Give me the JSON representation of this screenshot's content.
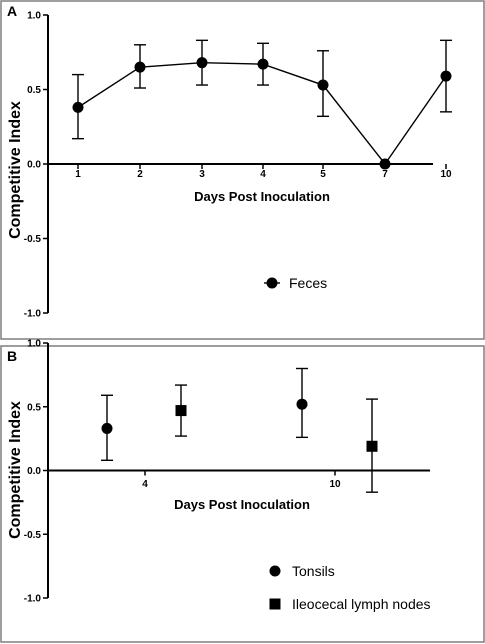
{
  "chart_data": [
    {
      "panel": "A",
      "type": "line",
      "xlabel": "Days Post Inoculation",
      "ylabel": "Competitive Index",
      "ylim": [
        -1.0,
        1.0
      ],
      "yticks": [
        "1.0",
        "0.5",
        "0.0",
        "-0.5",
        "-1.0"
      ],
      "categories": [
        "1",
        "2",
        "3",
        "4",
        "5",
        "7",
        "10"
      ],
      "series": [
        {
          "name": "Feces",
          "marker": "circle",
          "values": [
            0.38,
            0.65,
            0.68,
            0.67,
            0.53,
            0.0,
            0.59
          ],
          "error_low": [
            0.17,
            0.51,
            0.53,
            0.53,
            0.32,
            0.0,
            0.35
          ],
          "error_high": [
            0.6,
            0.8,
            0.83,
            0.81,
            0.76,
            0.0,
            0.83
          ]
        }
      ],
      "legend_position": "bottom-right"
    },
    {
      "panel": "B",
      "type": "scatter",
      "xlabel": "Days Post Inoculation",
      "ylabel": "Competitive Index",
      "ylim": [
        -1.0,
        1.0
      ],
      "yticks": [
        "1.0",
        "0.5",
        "0.0",
        "-0.5",
        "-1.0"
      ],
      "categories": [
        "4",
        "10"
      ],
      "series": [
        {
          "name": "Tonsils",
          "marker": "circle",
          "x": [
            "4",
            "10"
          ],
          "values": [
            0.33,
            0.52
          ],
          "error_low": [
            0.08,
            0.26
          ],
          "error_high": [
            0.59,
            0.8
          ]
        },
        {
          "name": "Ileocecal lymph nodes",
          "marker": "square",
          "x": [
            "4",
            "10"
          ],
          "values": [
            0.47,
            0.19
          ],
          "error_low": [
            0.27,
            -0.17
          ],
          "error_high": [
            0.67,
            0.56
          ]
        }
      ],
      "legend_position": "bottom-right"
    }
  ]
}
